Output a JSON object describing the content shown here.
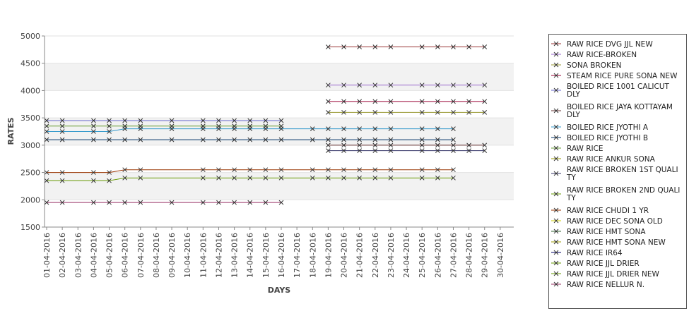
{
  "chart_data": {
    "type": "line",
    "xlabel": "DAYS",
    "ylabel": "RATES",
    "ylim": [
      1500,
      5000
    ],
    "yticks": [
      1500,
      2000,
      2500,
      3000,
      3500,
      4000,
      4500,
      5000
    ],
    "categories": [
      "01-04-2016",
      "02-04-2016",
      "03-04-2016",
      "04-04-2016",
      "05-04-2016",
      "06-04-2016",
      "07-04-2016",
      "08-04-2016",
      "09-04-2016",
      "10-04-2016",
      "11-04-2016",
      "12-04-2016",
      "13-04-2016",
      "14-04-2016",
      "15-04-2016",
      "16-04-2016",
      "17-04-2016",
      "18-04-2016",
      "19-04-2016",
      "20-04-2016",
      "21-04-2016",
      "22-04-2016",
      "23-04-2016",
      "24-04-2016",
      "25-04-2016",
      "26-04-2016",
      "27-04-2016",
      "28-04-2016",
      "29-04-2016",
      "30-04-2016"
    ],
    "grid": "horizontal bands",
    "legend_position": "right",
    "series": [
      {
        "name": "RAW RICE DVG JJL NEW",
        "color": "#993333",
        "values": [
          null,
          null,
          null,
          null,
          null,
          null,
          null,
          null,
          null,
          null,
          null,
          null,
          null,
          null,
          null,
          null,
          null,
          null,
          4800,
          4800,
          4800,
          4800,
          4800,
          null,
          4800,
          4800,
          4800,
          4800,
          4800,
          null
        ]
      },
      {
        "name": "RAW RICE-BROKEN",
        "color": "#9966cc",
        "values": [
          null,
          null,
          null,
          null,
          null,
          null,
          null,
          null,
          null,
          null,
          null,
          null,
          null,
          null,
          null,
          null,
          null,
          null,
          4100,
          4100,
          4100,
          4100,
          4100,
          null,
          4100,
          4100,
          4100,
          4100,
          4100,
          null
        ]
      },
      {
        "name": "SONA BROKEN",
        "color": "#999933",
        "values": [
          null,
          null,
          null,
          null,
          null,
          null,
          null,
          null,
          null,
          null,
          null,
          null,
          null,
          null,
          null,
          null,
          null,
          null,
          3600,
          3600,
          3600,
          3600,
          3600,
          null,
          3600,
          3600,
          3600,
          3600,
          3600,
          null
        ]
      },
      {
        "name": "STEAM RICE PURE SONA NEW",
        "color": "#990033",
        "values": [
          null,
          null,
          null,
          null,
          null,
          null,
          null,
          null,
          null,
          null,
          null,
          null,
          null,
          null,
          null,
          null,
          null,
          null,
          3800,
          3800,
          3800,
          3800,
          3800,
          null,
          3800,
          3800,
          3800,
          3800,
          3800,
          null
        ]
      },
      {
        "name": "BOILED RICE 1001 CALICUT DLY",
        "color": "#6666cc",
        "values": [
          3450,
          3450,
          null,
          3450,
          3450,
          3450,
          3450,
          null,
          3450,
          null,
          3450,
          3450,
          3450,
          3450,
          3450,
          3450,
          null,
          null,
          null,
          null,
          null,
          null,
          null,
          null,
          null,
          null,
          null,
          null,
          null,
          null
        ]
      },
      {
        "name": "BOILED RICE JAYA KOTTAYAM DLY",
        "color": "#663333",
        "values": [
          null,
          null,
          null,
          null,
          null,
          null,
          null,
          null,
          null,
          null,
          null,
          null,
          null,
          null,
          null,
          null,
          null,
          null,
          3000,
          3000,
          3000,
          3000,
          3000,
          null,
          3000,
          3000,
          3000,
          3000,
          3000,
          null
        ]
      },
      {
        "name": "BOILED RICE JYOTHI A",
        "color": "#3399cc",
        "values": [
          3250,
          3250,
          null,
          3250,
          3250,
          3300,
          3300,
          null,
          3300,
          null,
          3300,
          3300,
          3300,
          3300,
          3300,
          3300,
          null,
          3300,
          3300,
          3300,
          3300,
          3300,
          3300,
          null,
          3300,
          3300,
          3300,
          null,
          null,
          null
        ]
      },
      {
        "name": "BOILED RICE JYOTHI B",
        "color": "#003366",
        "values": [
          3100,
          3100,
          null,
          3100,
          3100,
          3100,
          3100,
          null,
          3100,
          null,
          3100,
          3100,
          3100,
          3100,
          3100,
          3100,
          null,
          3100,
          3100,
          3100,
          3100,
          3100,
          3100,
          null,
          3100,
          3100,
          3100,
          null,
          null,
          null
        ]
      },
      {
        "name": "RAW RICE",
        "color": "#669933",
        "values": [
          3350,
          3350,
          null,
          3350,
          3350,
          3350,
          3350,
          null,
          3350,
          null,
          3350,
          3350,
          3350,
          3350,
          3350,
          3350,
          null,
          null,
          null,
          null,
          null,
          null,
          null,
          null,
          null,
          null,
          null,
          null,
          null,
          null
        ]
      },
      {
        "name": "RAW RICE ANKUR SONA",
        "color": "#999900",
        "values": [
          null,
          null,
          null,
          null,
          null,
          null,
          null,
          null,
          null,
          null,
          null,
          null,
          null,
          null,
          null,
          null,
          null,
          null,
          null,
          null,
          null,
          null,
          null,
          null,
          null,
          null,
          null,
          null,
          null,
          null
        ]
      },
      {
        "name": "RAW RICE BROKEN 1ST QUALITY",
        "color": "#333366",
        "values": [
          null,
          null,
          null,
          null,
          null,
          null,
          null,
          null,
          null,
          null,
          null,
          null,
          null,
          null,
          null,
          null,
          null,
          null,
          2900,
          2900,
          2900,
          2900,
          2900,
          null,
          2900,
          2900,
          2900,
          2900,
          2900,
          null
        ]
      },
      {
        "name": "RAW RICE BROKEN 2ND QUALITY",
        "color": "#669900",
        "values": [
          null,
          null,
          null,
          null,
          null,
          null,
          null,
          null,
          null,
          null,
          null,
          null,
          null,
          null,
          null,
          null,
          null,
          null,
          null,
          null,
          null,
          null,
          null,
          null,
          null,
          null,
          null,
          null,
          null,
          null
        ]
      },
      {
        "name": "RAW RICE CHUDI 1 YR",
        "color": "#993300",
        "values": [
          2500,
          2500,
          null,
          2500,
          2500,
          2550,
          2550,
          null,
          null,
          null,
          2550,
          2550,
          2550,
          2550,
          2550,
          2550,
          null,
          2550,
          2550,
          2550,
          2550,
          2550,
          2550,
          null,
          2550,
          2550,
          2550,
          null,
          null,
          null
        ]
      },
      {
        "name": "RAW RICE DEC SONA OLD",
        "color": "#cccc00",
        "values": [
          null,
          null,
          null,
          null,
          null,
          null,
          null,
          null,
          null,
          null,
          null,
          null,
          null,
          null,
          null,
          null,
          null,
          null,
          null,
          null,
          null,
          null,
          null,
          null,
          null,
          null,
          null,
          null,
          null,
          null
        ]
      },
      {
        "name": "RAW RICE HMT SONA",
        "color": "#336633",
        "values": [
          null,
          null,
          null,
          null,
          null,
          null,
          null,
          null,
          null,
          null,
          null,
          null,
          null,
          null,
          null,
          null,
          null,
          null,
          null,
          null,
          null,
          null,
          null,
          null,
          null,
          null,
          null,
          null,
          null,
          null
        ]
      },
      {
        "name": "RAW RICE HMT SONA NEW",
        "color": "#999900",
        "values": [
          null,
          null,
          null,
          null,
          null,
          null,
          null,
          null,
          null,
          null,
          null,
          null,
          null,
          null,
          null,
          null,
          null,
          null,
          null,
          null,
          null,
          null,
          null,
          null,
          null,
          null,
          null,
          null,
          null,
          null
        ]
      },
      {
        "name": "RAW RICE IR64",
        "color": "#000066",
        "values": [
          null,
          null,
          null,
          null,
          null,
          null,
          null,
          null,
          null,
          null,
          null,
          null,
          null,
          null,
          null,
          null,
          null,
          null,
          null,
          null,
          null,
          null,
          null,
          null,
          null,
          null,
          null,
          null,
          null,
          null
        ]
      },
      {
        "name": "RAW RICE JJL DRIER",
        "color": "#669900",
        "values": [
          2350,
          2350,
          null,
          2350,
          2350,
          2400,
          2400,
          null,
          null,
          null,
          2400,
          2400,
          2400,
          2400,
          2400,
          2400,
          null,
          2400,
          2400,
          2400,
          2400,
          2400,
          2400,
          null,
          2400,
          2400,
          2400,
          null,
          null,
          null
        ]
      },
      {
        "name": "RAW RICE JJL DRIER NEW",
        "color": "#669900",
        "values": [
          null,
          null,
          null,
          null,
          null,
          null,
          null,
          null,
          null,
          null,
          null,
          null,
          null,
          null,
          null,
          null,
          null,
          null,
          null,
          null,
          null,
          null,
          null,
          null,
          null,
          null,
          null,
          null,
          null,
          null
        ]
      },
      {
        "name": "RAW RICE NELLUR N.",
        "color": "#993366",
        "values": [
          1950,
          1950,
          null,
          1950,
          1950,
          1950,
          1950,
          null,
          1950,
          null,
          1950,
          1950,
          1950,
          1950,
          1950,
          1950,
          null,
          null,
          null,
          null,
          null,
          null,
          null,
          null,
          null,
          null,
          null,
          null,
          null,
          null
        ]
      }
    ]
  },
  "legend": {
    "items": [
      {
        "lines": [
          "RAW RICE DVG JJL NEW"
        ],
        "color": "#993333"
      },
      {
        "lines": [
          "RAW RICE-BROKEN"
        ],
        "color": "#9966cc"
      },
      {
        "lines": [
          "SONA BROKEN"
        ],
        "color": "#999933"
      },
      {
        "lines": [
          "STEAM RICE PURE SONA NEW"
        ],
        "color": "#990033"
      },
      {
        "lines": [
          "BOILED RICE 1001 CALICUT",
          "DLY"
        ],
        "color": "#6666cc"
      },
      {
        "lines": [
          "BOILED RICE JAYA KOTTAYAM",
          " DLY"
        ],
        "color": "#663333"
      },
      {
        "lines": [
          "BOILED RICE JYOTHI A"
        ],
        "color": "#3399cc"
      },
      {
        "lines": [
          "BOILED RICE JYOTHI B"
        ],
        "color": "#003366"
      },
      {
        "lines": [
          "RAW RICE"
        ],
        "color": "#669933"
      },
      {
        "lines": [
          "RAW RICE ANKUR SONA"
        ],
        "color": "#999900"
      },
      {
        "lines": [
          "RAW RICE BROKEN 1ST QUALI",
          "TY"
        ],
        "color": "#333366"
      },
      {
        "lines": [
          "RAW RICE BROKEN 2ND QUALI",
          "TY"
        ],
        "color": "#669900"
      },
      {
        "lines": [
          "RAW RICE CHUDI 1 YR"
        ],
        "color": "#993300"
      },
      {
        "lines": [
          "RAW RICE DEC SONA OLD"
        ],
        "color": "#cccc00"
      },
      {
        "lines": [
          "RAW RICE HMT SONA"
        ],
        "color": "#336633"
      },
      {
        "lines": [
          "RAW RICE HMT SONA NEW"
        ],
        "color": "#999900"
      },
      {
        "lines": [
          "RAW RICE IR64"
        ],
        "color": "#000066"
      },
      {
        "lines": [
          "RAW RICE JJL DRIER"
        ],
        "color": "#669900"
      },
      {
        "lines": [
          "RAW RICE JJL DRIER NEW"
        ],
        "color": "#669900"
      },
      {
        "lines": [
          "RAW RICE NELLUR N."
        ],
        "color": "#993366"
      }
    ]
  }
}
